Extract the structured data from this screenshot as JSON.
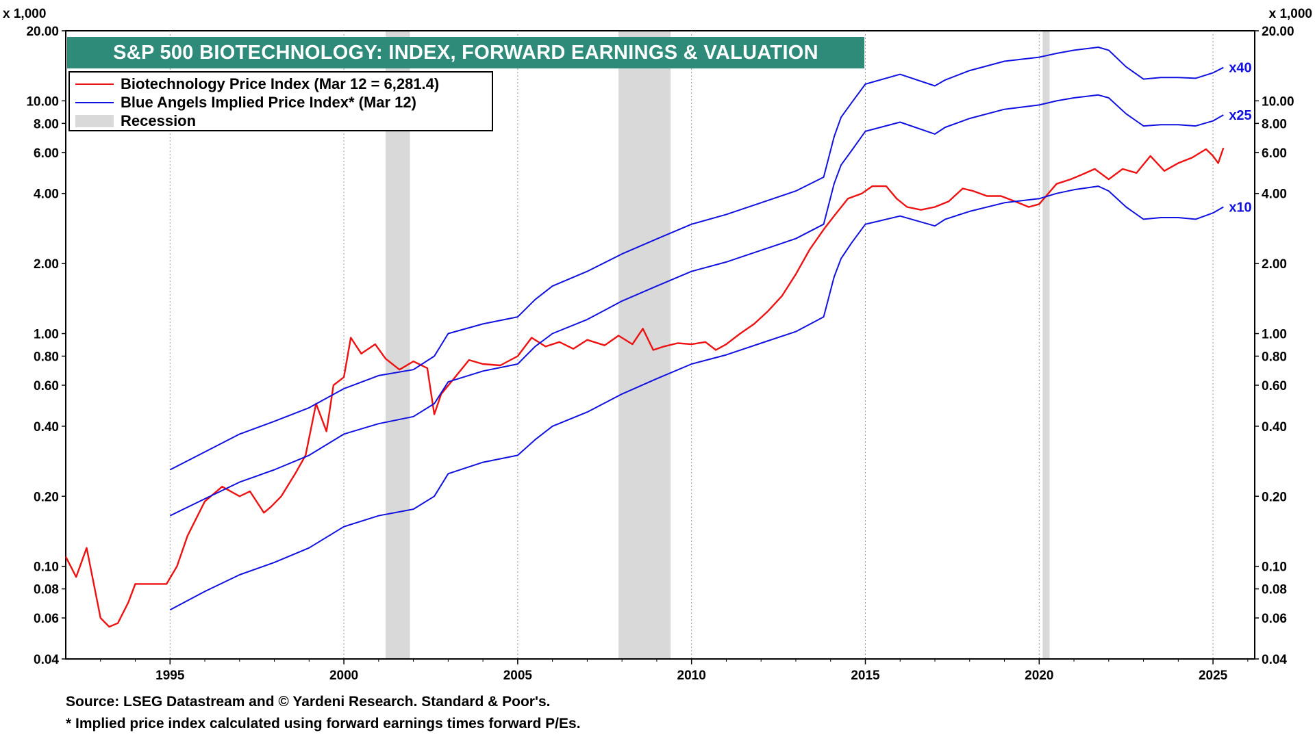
{
  "chart_data": {
    "type": "line",
    "title": "S&P 500 BIOTECHNOLOGY: INDEX, FORWARD EARNINGS & VALUATION",
    "y_unit_label": "x 1,000",
    "y_scale": "log",
    "ylim": [
      0.04,
      20
    ],
    "xlim": [
      1992.0,
      2026.2
    ],
    "y_ticks": [
      0.04,
      0.06,
      0.08,
      0.1,
      0.2,
      0.4,
      0.6,
      0.8,
      1.0,
      2.0,
      4.0,
      6.0,
      8.0,
      10.0,
      20.0
    ],
    "y_tick_labels": [
      "0.04",
      "0.06",
      "0.08",
      "0.10",
      "0.20",
      "0.40",
      "0.60",
      "0.80",
      "1.00",
      "2.00",
      "4.00",
      "6.00",
      "8.00",
      "10.00",
      "20.00"
    ],
    "x_ticks": [
      1995,
      2000,
      2005,
      2010,
      2015,
      2020,
      2025
    ],
    "x_tick_labels": [
      "1995",
      "2000",
      "2005",
      "2010",
      "2015",
      "2020",
      "2025"
    ],
    "legend": [
      {
        "label": "Biotechnology Price Index (Mar 12 = 6,281.4)",
        "color": "#ee1111",
        "kind": "line"
      },
      {
        "label": "Blue Angels Implied Price Index* (Mar 12)",
        "color": "#1010e0",
        "kind": "line"
      },
      {
        "label": "Recession",
        "color": "#d9d9d9",
        "kind": "box"
      }
    ],
    "recessions": [
      [
        2001.2,
        2001.9
      ],
      [
        2007.9,
        2009.4
      ],
      [
        2020.1,
        2020.3
      ]
    ],
    "series": [
      {
        "name": "Biotechnology Price Index",
        "color": "#ee1111",
        "x": [
          1992.0,
          1992.3,
          1992.6,
          1993.0,
          1993.25,
          1993.5,
          1993.8,
          1994.0,
          1994.9,
          1995.2,
          1995.5,
          1996.0,
          1996.5,
          1997.0,
          1997.3,
          1997.7,
          1997.9,
          1998.2,
          1998.6,
          1998.9,
          1999.2,
          1999.5,
          1999.7,
          2000.0,
          2000.2,
          2000.5,
          2000.9,
          2001.2,
          2001.6,
          2002.0,
          2002.4,
          2002.6,
          2002.8,
          2003.2,
          2003.6,
          2004.0,
          2004.5,
          2005.0,
          2005.4,
          2005.8,
          2006.2,
          2006.6,
          2007.0,
          2007.5,
          2007.9,
          2008.3,
          2008.6,
          2008.9,
          2009.2,
          2009.6,
          2010.0,
          2010.4,
          2010.7,
          2011.0,
          2011.4,
          2011.8,
          2012.2,
          2012.6,
          2013.0,
          2013.4,
          2013.8,
          2014.1,
          2014.5,
          2014.9,
          2015.2,
          2015.6,
          2015.9,
          2016.2,
          2016.6,
          2017.0,
          2017.4,
          2017.8,
          2018.1,
          2018.5,
          2018.9,
          2019.3,
          2019.7,
          2020.0,
          2020.2,
          2020.5,
          2020.9,
          2021.2,
          2021.6,
          2022.0,
          2022.4,
          2022.8,
          2023.2,
          2023.6,
          2024.0,
          2024.4,
          2024.8,
          2025.0,
          2025.15,
          2025.3
        ],
        "y": [
          0.11,
          0.09,
          0.12,
          0.06,
          0.055,
          0.057,
          0.07,
          0.084,
          0.084,
          0.1,
          0.135,
          0.19,
          0.22,
          0.2,
          0.21,
          0.17,
          0.18,
          0.2,
          0.25,
          0.3,
          0.5,
          0.38,
          0.6,
          0.65,
          0.96,
          0.82,
          0.9,
          0.78,
          0.7,
          0.76,
          0.71,
          0.45,
          0.55,
          0.65,
          0.77,
          0.74,
          0.73,
          0.8,
          0.96,
          0.88,
          0.92,
          0.86,
          0.94,
          0.89,
          0.98,
          0.9,
          1.05,
          0.85,
          0.88,
          0.91,
          0.9,
          0.92,
          0.85,
          0.9,
          1.0,
          1.1,
          1.25,
          1.45,
          1.8,
          2.3,
          2.8,
          3.2,
          3.8,
          4.0,
          4.3,
          4.3,
          3.8,
          3.5,
          3.4,
          3.5,
          3.7,
          4.2,
          4.1,
          3.9,
          3.9,
          3.7,
          3.5,
          3.6,
          3.9,
          4.4,
          4.6,
          4.8,
          5.1,
          4.6,
          5.1,
          4.9,
          5.8,
          5.0,
          5.4,
          5.7,
          6.2,
          5.8,
          5.4,
          6.28
        ]
      },
      {
        "name": "",
        "label": "x40",
        "color": "#1010e0",
        "x": [
          1995.0,
          1996.0,
          1997.0,
          1998.0,
          1999.0,
          2000.0,
          2001.0,
          2002.0,
          2002.6,
          2003.0,
          2004.0,
          2005.0,
          2005.5,
          2006.0,
          2007.0,
          2008.0,
          2009.0,
          2010.0,
          2011.0,
          2012.0,
          2013.0,
          2013.8,
          2014.1,
          2014.3,
          2014.6,
          2015.0,
          2016.0,
          2017.0,
          2017.3,
          2018.0,
          2019.0,
          2020.0,
          2020.5,
          2021.0,
          2021.7,
          2022.0,
          2022.5,
          2023.0,
          2023.5,
          2024.0,
          2024.5,
          2025.0,
          2025.3
        ],
        "y": [
          0.26,
          0.31,
          0.37,
          0.42,
          0.48,
          0.58,
          0.66,
          0.7,
          0.8,
          1.0,
          1.1,
          1.18,
          1.4,
          1.6,
          1.85,
          2.2,
          2.55,
          2.95,
          3.25,
          3.65,
          4.1,
          4.7,
          7.0,
          8.5,
          9.8,
          11.8,
          13.0,
          11.6,
          12.3,
          13.5,
          14.8,
          15.4,
          16.0,
          16.5,
          17.0,
          16.5,
          14.0,
          12.4,
          12.6,
          12.6,
          12.5,
          13.2,
          13.9
        ]
      },
      {
        "name": "",
        "label": "x25",
        "color": "#1010e0",
        "x": [
          1995.0,
          1996.0,
          1997.0,
          1998.0,
          1999.0,
          2000.0,
          2001.0,
          2002.0,
          2002.6,
          2003.0,
          2004.0,
          2005.0,
          2005.5,
          2006.0,
          2007.0,
          2008.0,
          2009.0,
          2010.0,
          2011.0,
          2012.0,
          2013.0,
          2013.8,
          2014.1,
          2014.3,
          2014.6,
          2015.0,
          2016.0,
          2017.0,
          2017.3,
          2018.0,
          2019.0,
          2020.0,
          2020.5,
          2021.0,
          2021.7,
          2022.0,
          2022.5,
          2023.0,
          2023.5,
          2024.0,
          2024.5,
          2025.0,
          2025.3
        ],
        "y": [
          0.165,
          0.195,
          0.23,
          0.26,
          0.3,
          0.37,
          0.41,
          0.44,
          0.5,
          0.62,
          0.69,
          0.74,
          0.88,
          1.0,
          1.15,
          1.38,
          1.6,
          1.85,
          2.03,
          2.28,
          2.56,
          2.95,
          4.4,
          5.3,
          6.1,
          7.4,
          8.1,
          7.2,
          7.7,
          8.4,
          9.2,
          9.6,
          10.0,
          10.3,
          10.6,
          10.3,
          8.8,
          7.8,
          7.9,
          7.9,
          7.8,
          8.2,
          8.7
        ]
      },
      {
        "name": "",
        "label": "x10",
        "color": "#1010e0",
        "x": [
          1995.0,
          1996.0,
          1997.0,
          1998.0,
          1999.0,
          2000.0,
          2001.0,
          2002.0,
          2002.6,
          2003.0,
          2004.0,
          2005.0,
          2005.5,
          2006.0,
          2007.0,
          2008.0,
          2009.0,
          2010.0,
          2011.0,
          2012.0,
          2013.0,
          2013.8,
          2014.1,
          2014.3,
          2014.6,
          2015.0,
          2016.0,
          2017.0,
          2017.3,
          2018.0,
          2019.0,
          2020.0,
          2020.5,
          2021.0,
          2021.7,
          2022.0,
          2022.5,
          2023.0,
          2023.5,
          2024.0,
          2024.5,
          2025.0,
          2025.3
        ],
        "y": [
          0.065,
          0.078,
          0.092,
          0.104,
          0.12,
          0.148,
          0.165,
          0.176,
          0.2,
          0.25,
          0.28,
          0.3,
          0.35,
          0.4,
          0.46,
          0.55,
          0.64,
          0.74,
          0.81,
          0.91,
          1.02,
          1.18,
          1.75,
          2.1,
          2.45,
          2.95,
          3.2,
          2.9,
          3.1,
          3.35,
          3.65,
          3.8,
          4.0,
          4.15,
          4.3,
          4.1,
          3.5,
          3.1,
          3.15,
          3.15,
          3.1,
          3.3,
          3.5
        ]
      }
    ]
  },
  "footnotes": {
    "source": "Source: LSEG Datastream and © Yardeni Research. Standard & Poor's.",
    "note": "* Implied price index calculated using forward earnings times forward P/Es."
  }
}
